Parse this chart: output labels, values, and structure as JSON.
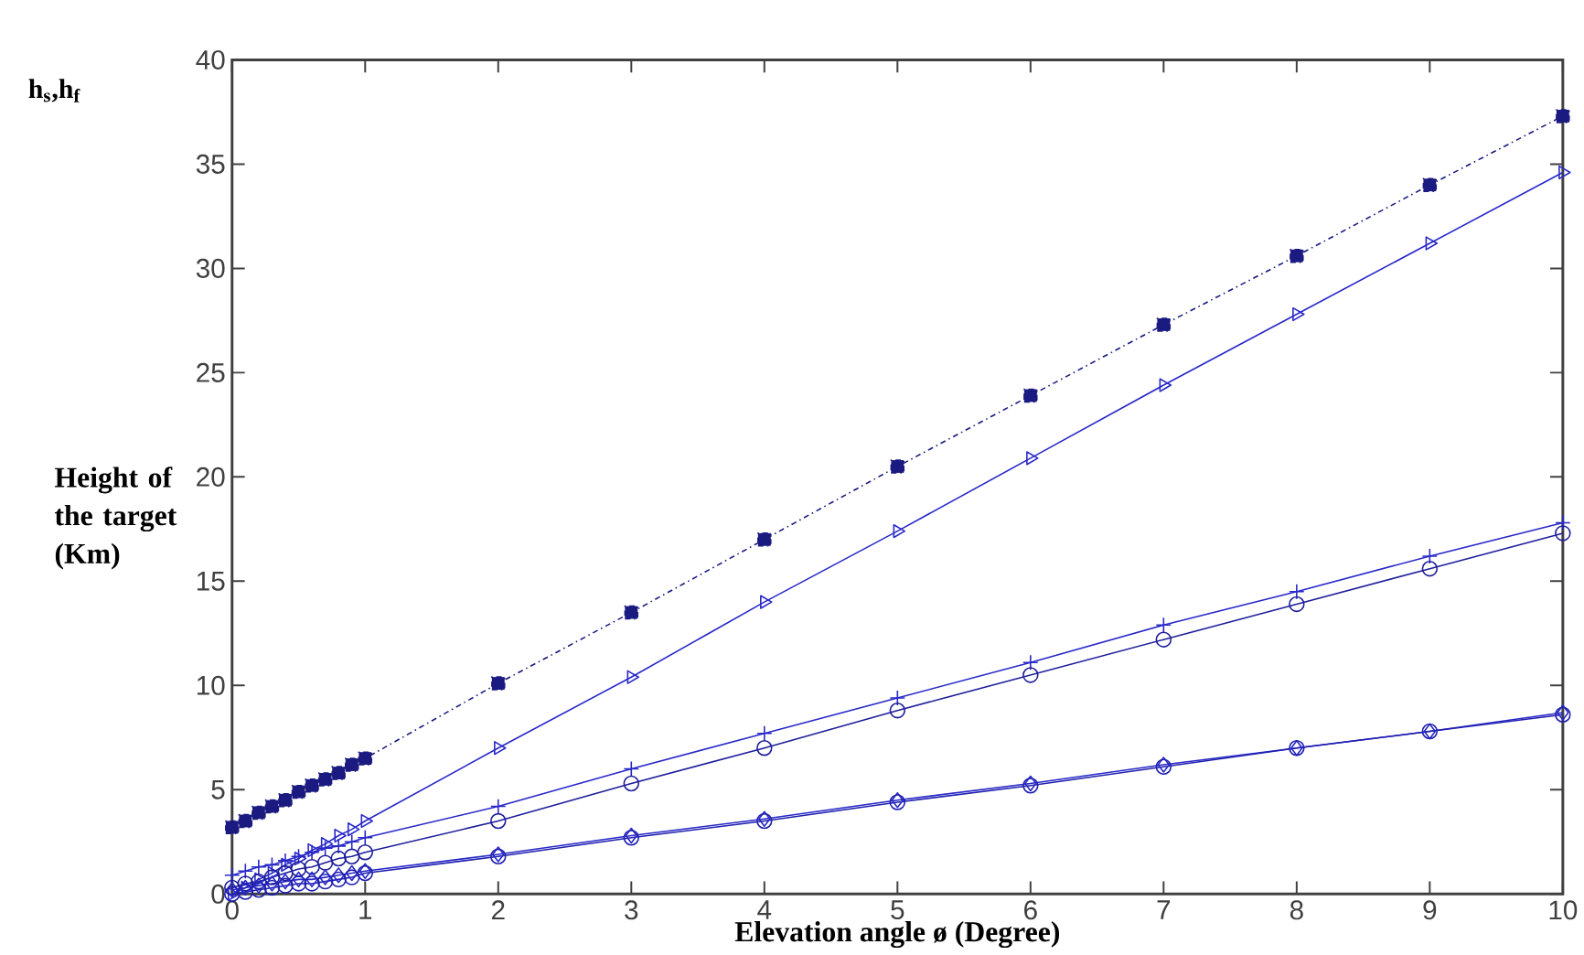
{
  "chart_data": {
    "type": "line",
    "xlabel": "Elevation angle ø (Degree)",
    "ylabel": "Height of the target (Km)",
    "annotations": [
      "h$_{s}$,h$_{f}$"
    ],
    "x": [
      0,
      0.1,
      0.2,
      0.3,
      0.4,
      0.5,
      0.6,
      0.7,
      0.8,
      0.9,
      1,
      2,
      3,
      4,
      5,
      6,
      7,
      8,
      9,
      10
    ],
    "xlim": [
      0,
      10
    ],
    "xticks": [
      0,
      1,
      2,
      3,
      4,
      5,
      6,
      7,
      8,
      9,
      10
    ],
    "ylim": [
      0,
      40
    ],
    "yticks": [
      0,
      5,
      10,
      15,
      20,
      25,
      30,
      35,
      40
    ],
    "grid": false,
    "series": [
      {
        "color": "#1a1a80",
        "marker": "square",
        "line_style": "dashed",
        "values": [
          3.2,
          3.5,
          3.9,
          4.2,
          4.5,
          4.9,
          5.2,
          5.5,
          5.8,
          6.2,
          6.5,
          10.1,
          13.5,
          17.0,
          20.5,
          23.9,
          27.3,
          30.6,
          34.0,
          37.3
        ]
      },
      {
        "color": "#2828c8",
        "marker": "triangle",
        "line_style": "solid",
        "values": [
          0.0,
          0.3,
          0.7,
          1.0,
          1.4,
          1.7,
          2.1,
          2.4,
          2.8,
          3.1,
          3.5,
          7.0,
          10.4,
          14.0,
          17.4,
          20.9,
          24.4,
          27.8,
          31.2,
          34.6
        ]
      },
      {
        "color": "#2828c8",
        "marker": "cross",
        "line_style": "solid",
        "values": [
          0.9,
          1.1,
          1.3,
          1.4,
          1.6,
          1.8,
          2.0,
          2.2,
          2.3,
          2.5,
          2.7,
          4.2,
          6.0,
          7.7,
          9.4,
          11.1,
          12.9,
          14.5,
          16.2,
          17.8
        ]
      },
      {
        "color": "#1e1e9a",
        "marker": "circle",
        "line_style": "solid",
        "values": [
          0.3,
          0.5,
          0.6,
          0.8,
          1.0,
          1.2,
          1.3,
          1.5,
          1.7,
          1.8,
          2.0,
          3.5,
          5.3,
          7.0,
          8.8,
          10.5,
          12.2,
          13.9,
          15.6,
          17.3
        ]
      },
      {
        "color": "#2828c8",
        "marker": "diamond",
        "line_style": "solid",
        "values": [
          0.2,
          0.3,
          0.4,
          0.5,
          0.6,
          0.7,
          0.7,
          0.8,
          0.9,
          1.0,
          1.1,
          1.9,
          2.8,
          3.6,
          4.5,
          5.3,
          6.2,
          7.0,
          7.8,
          8.7
        ]
      },
      {
        "color": "#2020b0",
        "marker": "circle",
        "line_style": "solid",
        "values": [
          0.0,
          0.1,
          0.2,
          0.3,
          0.4,
          0.5,
          0.5,
          0.6,
          0.7,
          0.8,
          1.0,
          1.8,
          2.7,
          3.5,
          4.4,
          5.2,
          6.1,
          7.0,
          7.8,
          8.6
        ]
      }
    ]
  }
}
